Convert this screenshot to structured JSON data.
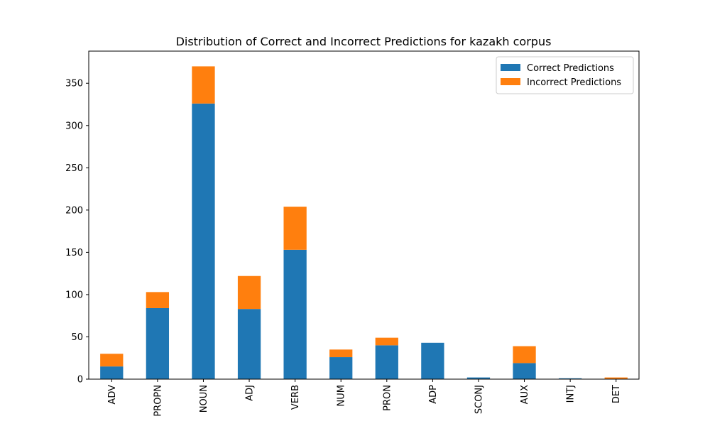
{
  "chart_data": {
    "type": "bar",
    "stacked": true,
    "title": "Distribution of Correct and Incorrect Predictions for kazakh corpus",
    "xlabel": "",
    "ylabel": "",
    "categories": [
      "ADV",
      "PROPN",
      "NOUN",
      "ADJ",
      "VERB",
      "NUM",
      "PRON",
      "ADP",
      "SCONJ",
      "AUX",
      "INTJ",
      "DET"
    ],
    "series": [
      {
        "name": "Correct Predictions",
        "color": "#1f77b4",
        "values": [
          15,
          84,
          326,
          83,
          153,
          26,
          40,
          43,
          2,
          19,
          1,
          0
        ]
      },
      {
        "name": "Incorrect Predictions",
        "color": "#ff7f0e",
        "values": [
          15,
          19,
          44,
          39,
          51,
          9,
          9,
          0,
          0,
          20,
          0,
          2
        ]
      }
    ],
    "ylim": [
      0,
      388
    ],
    "yticks": [
      0,
      50,
      100,
      150,
      200,
      250,
      300,
      350
    ],
    "grid": false,
    "legend_position": "top-right"
  }
}
